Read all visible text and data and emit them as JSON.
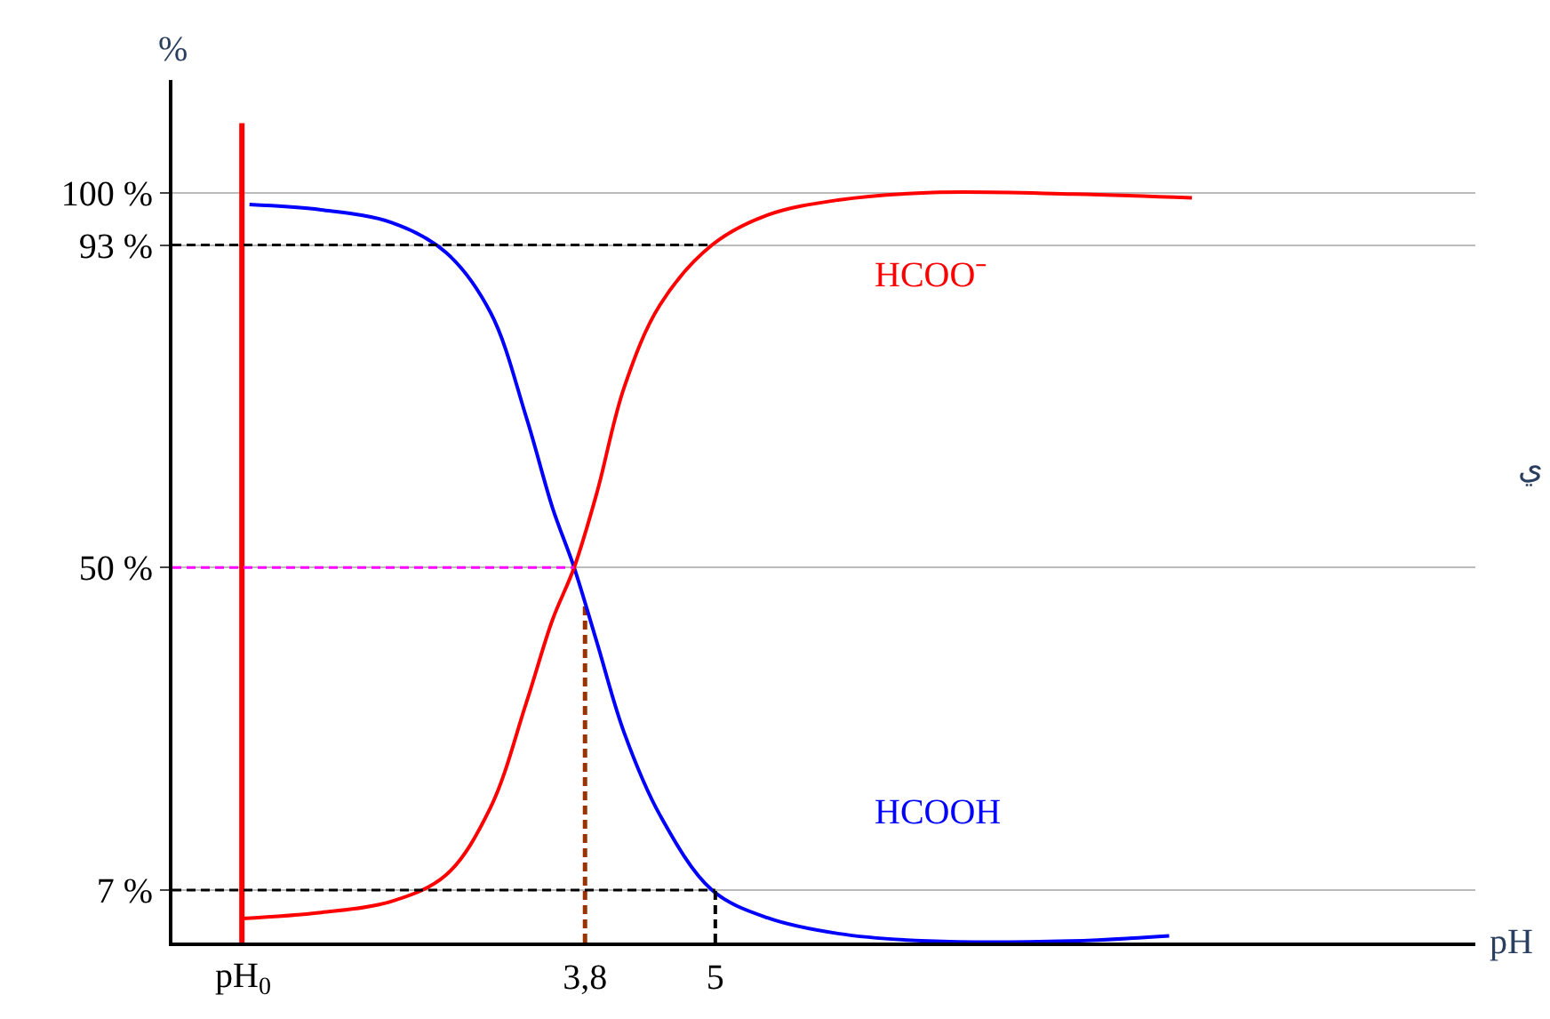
{
  "chart_data": {
    "type": "line",
    "xlabel": "pH",
    "ylabel": "%",
    "xlim": [
      0,
      12
    ],
    "ylim": [
      0,
      115
    ],
    "xticks": [
      {
        "value": 3.8,
        "label": "3,8"
      },
      5
    ],
    "yticks": [
      {
        "value": 7,
        "label": "7 %"
      },
      {
        "value": 50,
        "label": "50 %"
      },
      {
        "value": 93,
        "label": "93 %"
      },
      {
        "value": 100,
        "label": "100 %"
      }
    ],
    "series": [
      {
        "name": "HCOOH",
        "color": "#0000ff",
        "x": [
          0.71,
          1.37,
          2.02,
          2.52,
          2.93,
          3.26,
          3.5,
          3.7,
          3.91,
          4.16,
          4.49,
          4.97,
          5.48,
          6.13,
          6.96,
          8.27,
          9.18
        ],
        "values": [
          98.4,
          97.7,
          96,
          92,
          84,
          70,
          58,
          50,
          40,
          28,
          17,
          7,
          3.3,
          1.2,
          0.2,
          0.2,
          0.9
        ]
      },
      {
        "name": "HCOO⁻",
        "color": "#ff0000",
        "x": [
          0.64,
          1.37,
          2.02,
          2.52,
          2.93,
          3.26,
          3.5,
          3.7,
          3.91,
          4.16,
          4.49,
          4.97,
          5.48,
          6.13,
          7.0,
          8.3,
          9.39
        ],
        "values": [
          3.2,
          4,
          5.5,
          9,
          18,
          32,
          43,
          50,
          60,
          74,
          85,
          93,
          97,
          99,
          100,
          99.8,
          99.3
        ]
      },
      {
        "type": "line",
        "color": "#000000",
        "line_style": "dashed",
        "x": [
          5,
          5
        ],
        "values": [
          0,
          7
        ]
      }
    ],
    "ref_lines": [
      {
        "axis": "x",
        "value": 0.64,
        "color": "#ff0000",
        "line_style": "solid",
        "label": "pH$_{0}$"
      },
      {
        "axis": "y",
        "value": 93,
        "color": "#000000",
        "line_style": "dashed"
      },
      {
        "axis": "y",
        "value": 7,
        "color": "#000000",
        "line_style": "dashed"
      },
      {
        "axis": "y",
        "value": 50,
        "color": "#ff00ff",
        "line_style": "dashed"
      },
      {
        "axis": "x",
        "value": 3.8,
        "color": "#993300",
        "line_style": "dashed"
      }
    ],
    "annotations": [
      "ي"
    ],
    "grid": "y",
    "marker": "none",
    "line_style": "solid",
    "legend": false
  }
}
